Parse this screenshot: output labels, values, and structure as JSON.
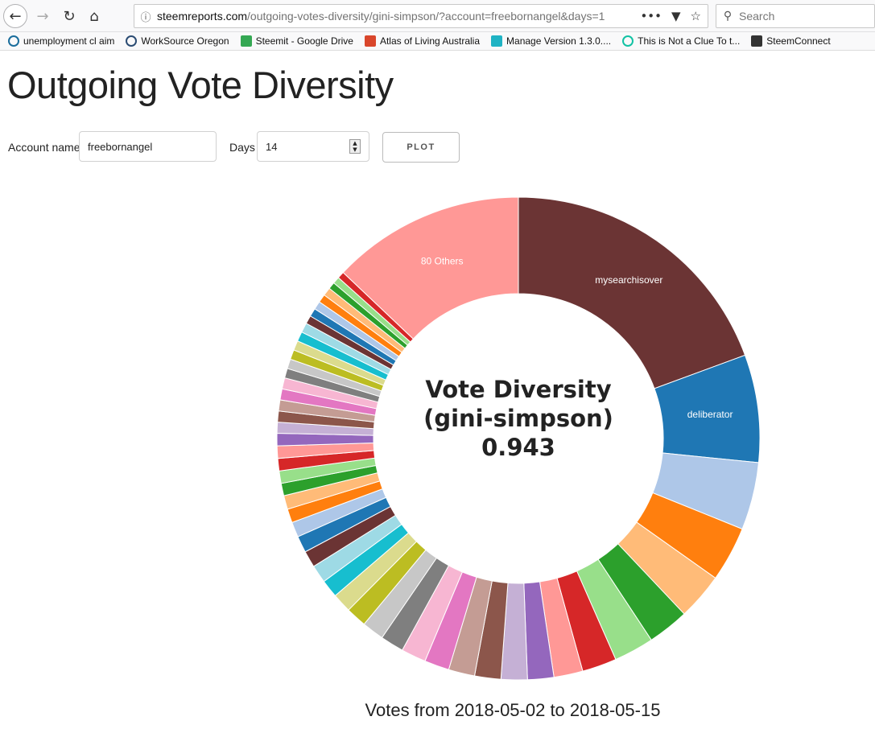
{
  "browser": {
    "url_host": "steemreports.com",
    "url_path": "/outgoing-votes-diversity/gini-simpson/?account=freebornangel&days=1",
    "search_placeholder": "Search",
    "bookmarks": [
      {
        "label": "unemployment cl aim",
        "icon": "circle-icon",
        "color": "#1a6d9c"
      },
      {
        "label": "WorkSource Oregon",
        "icon": "circle-icon",
        "color": "#2b4c73"
      },
      {
        "label": "Steemit - Google Drive",
        "icon": "drive-icon",
        "color": "#34a853"
      },
      {
        "label": "Atlas of Living Australia",
        "icon": "atlas-icon",
        "color": "#d9462b"
      },
      {
        "label": "Manage Version 1.3.0....",
        "icon": "gear-icon",
        "color": "#1fb3c4"
      },
      {
        "label": "This is Not a Clue To t...",
        "icon": "circle-icon",
        "color": "#12c2a4"
      },
      {
        "label": "SteemConnect",
        "icon": "bolt-icon",
        "color": "#333333"
      }
    ]
  },
  "page": {
    "title": "Outgoing Vote Diversity",
    "account_label": "Account name",
    "account_value": "freebornangel",
    "days_label": "Days",
    "days_value": "14",
    "plot_button": "PLOT",
    "center_line1": "Vote Diversity",
    "center_line2": "(gini-simpson)",
    "center_line3": "0.943",
    "footer": "Votes from 2018-05-02 to 2018-05-15"
  },
  "chart_data": {
    "type": "pie",
    "title": "Vote Diversity (gini-simpson)",
    "diversity_index": 0.943,
    "labels": [
      "mysearchisover",
      "deliberator",
      "80 Others"
    ],
    "slices": [
      {
        "label": "mysearchisover",
        "value": 21.0,
        "color": "#6b3434"
      },
      {
        "label": "deliberator",
        "value": 7.8,
        "color": "#1f77b4"
      },
      {
        "label": "",
        "value": 4.9,
        "color": "#aec7e8"
      },
      {
        "label": "",
        "value": 4.0,
        "color": "#ff7f0e"
      },
      {
        "label": "",
        "value": 3.4,
        "color": "#ffbb78"
      },
      {
        "label": "",
        "value": 3.0,
        "color": "#2ca02c"
      },
      {
        "label": "",
        "value": 2.9,
        "color": "#98df8a"
      },
      {
        "label": "",
        "value": 2.5,
        "color": "#d62728"
      },
      {
        "label": "",
        "value": 2.1,
        "color": "#ff9896"
      },
      {
        "label": "",
        "value": 1.9,
        "color": "#9467bd"
      },
      {
        "label": "",
        "value": 1.9,
        "color": "#c5b0d5"
      },
      {
        "label": "",
        "value": 1.9,
        "color": "#8c564b"
      },
      {
        "label": "",
        "value": 1.9,
        "color": "#c49c94"
      },
      {
        "label": "",
        "value": 1.8,
        "color": "#e377c2"
      },
      {
        "label": "",
        "value": 1.8,
        "color": "#f7b6d2"
      },
      {
        "label": "",
        "value": 1.7,
        "color": "#7f7f7f"
      },
      {
        "label": "",
        "value": 1.6,
        "color": "#c7c7c7"
      },
      {
        "label": "",
        "value": 1.5,
        "color": "#bcbd22"
      },
      {
        "label": "",
        "value": 1.4,
        "color": "#dbdb8d"
      },
      {
        "label": "",
        "value": 1.3,
        "color": "#17becf"
      },
      {
        "label": "",
        "value": 1.3,
        "color": "#9edae5"
      },
      {
        "label": "",
        "value": 1.2,
        "color": "#6b3434"
      },
      {
        "label": "",
        "value": 1.2,
        "color": "#1f77b4"
      },
      {
        "label": "",
        "value": 1.1,
        "color": "#aec7e8"
      },
      {
        "label": "",
        "value": 1.0,
        "color": "#ff7f0e"
      },
      {
        "label": "",
        "value": 1.0,
        "color": "#ffbb78"
      },
      {
        "label": "",
        "value": 0.9,
        "color": "#2ca02c"
      },
      {
        "label": "",
        "value": 0.9,
        "color": "#98df8a"
      },
      {
        "label": "",
        "value": 0.9,
        "color": "#d62728"
      },
      {
        "label": "",
        "value": 0.9,
        "color": "#ff9896"
      },
      {
        "label": "",
        "value": 0.9,
        "color": "#9467bd"
      },
      {
        "label": "",
        "value": 0.8,
        "color": "#c5b0d5"
      },
      {
        "label": "",
        "value": 0.8,
        "color": "#8c564b"
      },
      {
        "label": "",
        "value": 0.8,
        "color": "#c49c94"
      },
      {
        "label": "",
        "value": 0.8,
        "color": "#e377c2"
      },
      {
        "label": "",
        "value": 0.8,
        "color": "#f7b6d2"
      },
      {
        "label": "",
        "value": 0.7,
        "color": "#7f7f7f"
      },
      {
        "label": "",
        "value": 0.7,
        "color": "#c7c7c7"
      },
      {
        "label": "",
        "value": 0.7,
        "color": "#bcbd22"
      },
      {
        "label": "",
        "value": 0.7,
        "color": "#dbdb8d"
      },
      {
        "label": "",
        "value": 0.7,
        "color": "#17becf"
      },
      {
        "label": "",
        "value": 0.7,
        "color": "#9edae5"
      },
      {
        "label": "",
        "value": 0.6,
        "color": "#6b3434"
      },
      {
        "label": "",
        "value": 0.6,
        "color": "#1f77b4"
      },
      {
        "label": "",
        "value": 0.6,
        "color": "#aec7e8"
      },
      {
        "label": "",
        "value": 0.6,
        "color": "#ff7f0e"
      },
      {
        "label": "",
        "value": 0.6,
        "color": "#ffbb78"
      },
      {
        "label": "",
        "value": 0.5,
        "color": "#2ca02c"
      },
      {
        "label": "",
        "value": 0.5,
        "color": "#98df8a"
      },
      {
        "label": "",
        "value": 0.5,
        "color": "#d62728"
      },
      {
        "label": "80 Others",
        "value": 14.0,
        "color": "#ff9896"
      }
    ]
  }
}
